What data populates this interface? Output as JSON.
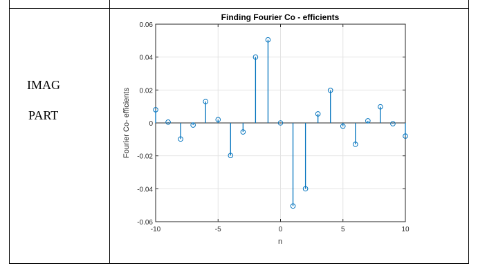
{
  "row_label": {
    "line1": "IMAG",
    "line2": "PART"
  },
  "chart_data": {
    "type": "stem",
    "title": "Finding Fourier Co - efficients",
    "xlabel": "n",
    "ylabel": "Fourier Co- efficients",
    "xlim": [
      -10,
      10
    ],
    "ylim": [
      -0.06,
      0.06
    ],
    "grid": true,
    "x_ticks": [
      -10,
      -5,
      0,
      5,
      10
    ],
    "x_tick_labels": [
      "-10",
      "-5",
      "0",
      "5",
      "10"
    ],
    "y_ticks": [
      0.06,
      0.04,
      0.02,
      0,
      -0.02,
      -0.04,
      -0.06
    ],
    "y_tick_labels": [
      "0.06",
      "0.04",
      "0.02",
      "0",
      "-0.02",
      "-0.04",
      "-0.06"
    ],
    "color": "#0072BD",
    "x": [
      -10,
      -9,
      -8,
      -7,
      -6,
      -5,
      -4,
      -3,
      -2,
      -1,
      0,
      1,
      2,
      3,
      4,
      5,
      6,
      7,
      8,
      9,
      10
    ],
    "values": [
      0.008,
      0.0005,
      -0.0098,
      -0.0013,
      0.013,
      0.002,
      -0.0198,
      -0.0055,
      0.04,
      0.0505,
      0,
      -0.0505,
      -0.04,
      0.0055,
      0.0198,
      -0.002,
      -0.013,
      0.0013,
      0.0098,
      -0.0005,
      -0.008
    ]
  }
}
